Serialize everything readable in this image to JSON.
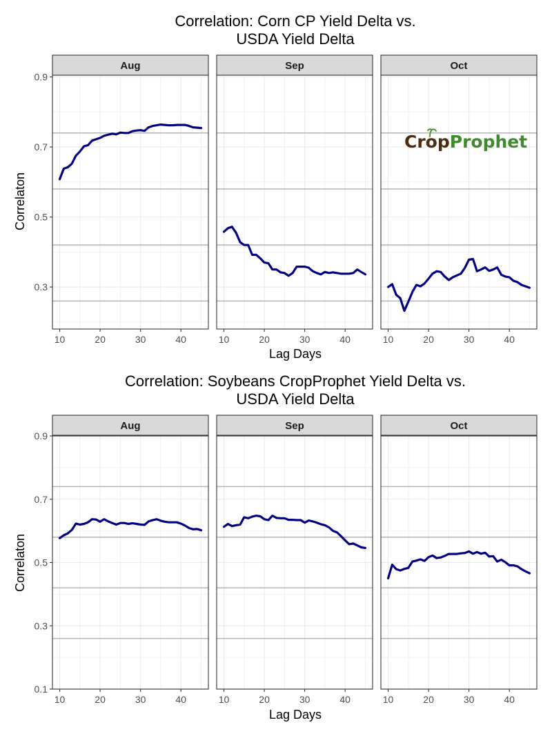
{
  "colors": {
    "line": "#000080",
    "hline": "#b3b3b3",
    "strip_bg": "#d9d9d9",
    "logo_brown": "#4a2e12",
    "logo_green": "#3f8a2e"
  },
  "logo": {
    "part1": "Crop",
    "part2": "Prophet"
  },
  "chart_data": [
    {
      "type": "line",
      "title_line1": "Correlation: Corn CP Yield Delta vs.",
      "title_line2": "USDA Yield Delta",
      "xlabel": "Lag Days",
      "ylabel": "Correlaton",
      "xlim": [
        8.2,
        46.8
      ],
      "ylim": [
        0.18,
        0.905
      ],
      "x_ticks": [
        10,
        20,
        30,
        40
      ],
      "y_ticks": [
        0.3,
        0.5,
        0.7,
        0.9
      ],
      "hlines": [
        0.26,
        0.42,
        0.58,
        0.74
      ],
      "x": [
        10,
        11,
        12,
        13,
        14,
        15,
        16,
        17,
        18,
        19,
        20,
        21,
        22,
        23,
        24,
        25,
        26,
        27,
        28,
        29,
        30,
        31,
        32,
        33,
        34,
        35,
        36,
        37,
        38,
        39,
        40,
        41,
        42,
        43,
        44,
        45
      ],
      "panels": [
        {
          "facet": "Aug",
          "values": [
            0.608,
            0.638,
            0.642,
            0.652,
            0.675,
            0.687,
            0.702,
            0.705,
            0.718,
            0.722,
            0.726,
            0.732,
            0.735,
            0.738,
            0.736,
            0.741,
            0.74,
            0.74,
            0.745,
            0.747,
            0.748,
            0.746,
            0.756,
            0.76,
            0.762,
            0.764,
            0.763,
            0.762,
            0.762,
            0.763,
            0.763,
            0.763,
            0.76,
            0.756,
            0.755,
            0.754
          ]
        },
        {
          "facet": "Sep",
          "values": [
            0.458,
            0.468,
            0.472,
            0.455,
            0.428,
            0.42,
            0.42,
            0.392,
            0.392,
            0.382,
            0.37,
            0.368,
            0.35,
            0.35,
            0.342,
            0.34,
            0.332,
            0.34,
            0.358,
            0.358,
            0.358,
            0.355,
            0.345,
            0.34,
            0.336,
            0.343,
            0.34,
            0.342,
            0.34,
            0.338,
            0.338,
            0.338,
            0.34,
            0.35,
            0.343,
            0.336
          ]
        },
        {
          "facet": "Oct",
          "values": [
            0.3,
            0.308,
            0.278,
            0.268,
            0.232,
            0.258,
            0.286,
            0.306,
            0.302,
            0.31,
            0.324,
            0.338,
            0.345,
            0.343,
            0.33,
            0.32,
            0.328,
            0.333,
            0.338,
            0.355,
            0.378,
            0.38,
            0.345,
            0.35,
            0.356,
            0.346,
            0.35,
            0.356,
            0.335,
            0.33,
            0.328,
            0.318,
            0.314,
            0.306,
            0.302,
            0.298
          ]
        }
      ]
    },
    {
      "type": "line",
      "title_line1": "Correlation: Soybeans CropProphet Yield Delta vs.",
      "title_line2": "USDA Yield Delta",
      "xlabel": "Lag Days",
      "ylabel": "Correlaton",
      "xlim": [
        8.2,
        46.8
      ],
      "ylim": [
        0.1,
        0.9
      ],
      "x_ticks": [
        10,
        20,
        30,
        40
      ],
      "y_ticks": [
        0.1,
        0.3,
        0.5,
        0.7,
        0.9
      ],
      "hlines": [
        0.26,
        0.42,
        0.58,
        0.74
      ],
      "x": [
        10,
        11,
        12,
        13,
        14,
        15,
        16,
        17,
        18,
        19,
        20,
        21,
        22,
        23,
        24,
        25,
        26,
        27,
        28,
        29,
        30,
        31,
        32,
        33,
        34,
        35,
        36,
        37,
        38,
        39,
        40,
        41,
        42,
        43,
        44,
        45
      ],
      "panels": [
        {
          "facet": "Aug",
          "values": [
            0.577,
            0.586,
            0.592,
            0.603,
            0.623,
            0.62,
            0.622,
            0.627,
            0.637,
            0.636,
            0.629,
            0.637,
            0.63,
            0.625,
            0.62,
            0.625,
            0.625,
            0.622,
            0.624,
            0.622,
            0.62,
            0.619,
            0.63,
            0.634,
            0.637,
            0.632,
            0.629,
            0.627,
            0.627,
            0.627,
            0.623,
            0.617,
            0.609,
            0.605,
            0.606,
            0.602
          ]
        },
        {
          "facet": "Sep",
          "values": [
            0.613,
            0.622,
            0.615,
            0.618,
            0.62,
            0.643,
            0.64,
            0.645,
            0.648,
            0.646,
            0.637,
            0.634,
            0.648,
            0.641,
            0.64,
            0.64,
            0.635,
            0.635,
            0.634,
            0.634,
            0.626,
            0.633,
            0.63,
            0.626,
            0.621,
            0.618,
            0.611,
            0.6,
            0.595,
            0.583,
            0.57,
            0.558,
            0.56,
            0.554,
            0.548,
            0.546
          ]
        },
        {
          "facet": "Oct",
          "values": [
            0.45,
            0.493,
            0.479,
            0.475,
            0.48,
            0.483,
            0.503,
            0.506,
            0.51,
            0.505,
            0.517,
            0.522,
            0.514,
            0.516,
            0.521,
            0.527,
            0.527,
            0.527,
            0.529,
            0.53,
            0.535,
            0.528,
            0.533,
            0.528,
            0.531,
            0.519,
            0.52,
            0.503,
            0.509,
            0.501,
            0.491,
            0.491,
            0.488,
            0.479,
            0.472,
            0.466
          ]
        }
      ]
    }
  ]
}
